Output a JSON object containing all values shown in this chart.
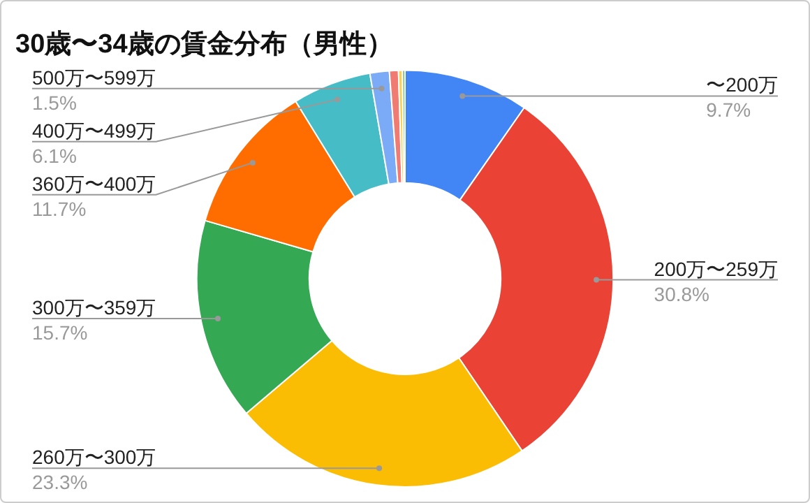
{
  "chart_data": {
    "type": "donut",
    "title": "30歳〜34歳の賃金分布（男性）",
    "categories": [
      "〜200万",
      "200万〜259万",
      "260万〜300万",
      "300万〜359万",
      "360万〜400万",
      "400万〜499万",
      "500万〜599万",
      null,
      null,
      null
    ],
    "values": [
      9.7,
      30.8,
      23.3,
      15.7,
      11.7,
      6.1,
      1.5,
      0.7,
      0.3,
      0.2
    ],
    "value_labels": [
      "9.7%",
      "30.8%",
      "23.3%",
      "15.7%",
      "11.7%",
      "6.1%",
      "1.5%",
      null,
      null,
      null
    ],
    "colors": [
      "#4285f4",
      "#ea4335",
      "#fbbc04",
      "#34a853",
      "#ff6d01",
      "#46bdc6",
      "#7baaf7",
      "#f07b72",
      "#fcd04f",
      "#71c287"
    ],
    "legend": false
  }
}
